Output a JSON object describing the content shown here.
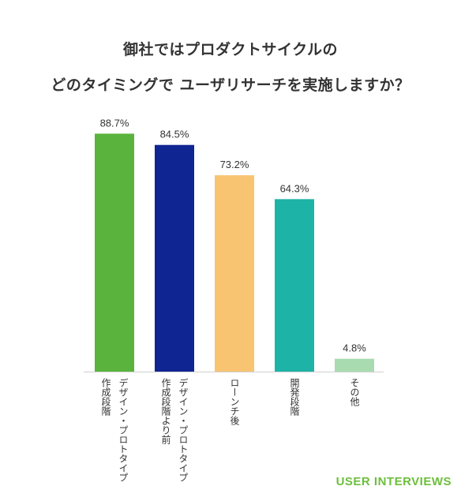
{
  "title": {
    "line1": "御社ではプロダクトサイクルの",
    "line2": "どのタイミングで ユーザリサーチを実施しますか？"
  },
  "brand": {
    "label": "USER INTERVIEWS",
    "color": "#6cbf3c"
  },
  "chart_data": {
    "type": "bar",
    "categories": [
      "デザイン・プロトタイプ作成段階",
      "デザイン・プロトタイプ作成段階より前",
      "ローンチ後",
      "開発段階",
      "その他"
    ],
    "category_lines": [
      [
        "デザイン・プロトタイプ",
        "作成段階"
      ],
      [
        "デザイン・プロトタイプ",
        "作成段階より前"
      ],
      [
        "ローンチ後"
      ],
      [
        "開発段階"
      ],
      [
        "その他"
      ]
    ],
    "values": [
      88.7,
      84.5,
      73.2,
      64.3,
      4.8
    ],
    "value_labels": [
      "88.7%",
      "84.5%",
      "73.2%",
      "64.3%",
      "4.8%"
    ],
    "colors": [
      "#5ab33c",
      "#0f2591",
      "#f8c472",
      "#1db3a6",
      "#a8dcb0"
    ],
    "ylim": [
      0,
      100
    ],
    "grid": false,
    "legend": "none"
  }
}
